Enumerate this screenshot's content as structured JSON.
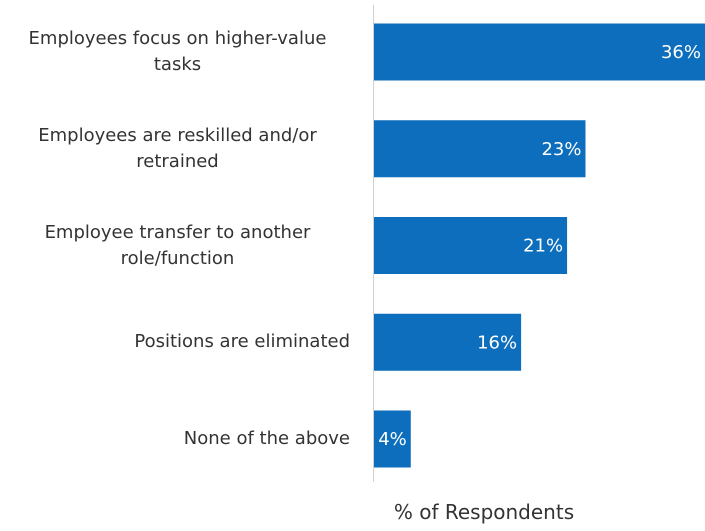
{
  "chart_data": {
    "type": "bar",
    "orientation": "horizontal",
    "categories": [
      "Employees focus on higher-value tasks",
      "Employees are reskilled and/or retrained",
      "Employee transfer to another role/function",
      "Positions are eliminated",
      "None of the above"
    ],
    "values": [
      36,
      23,
      21,
      16,
      4
    ],
    "value_labels": [
      "36%",
      "23%",
      "21%",
      "16%",
      "4%"
    ],
    "color": "#0d6ebd",
    "x_label": "% of Respondents",
    "xlim": [
      0,
      36
    ]
  }
}
